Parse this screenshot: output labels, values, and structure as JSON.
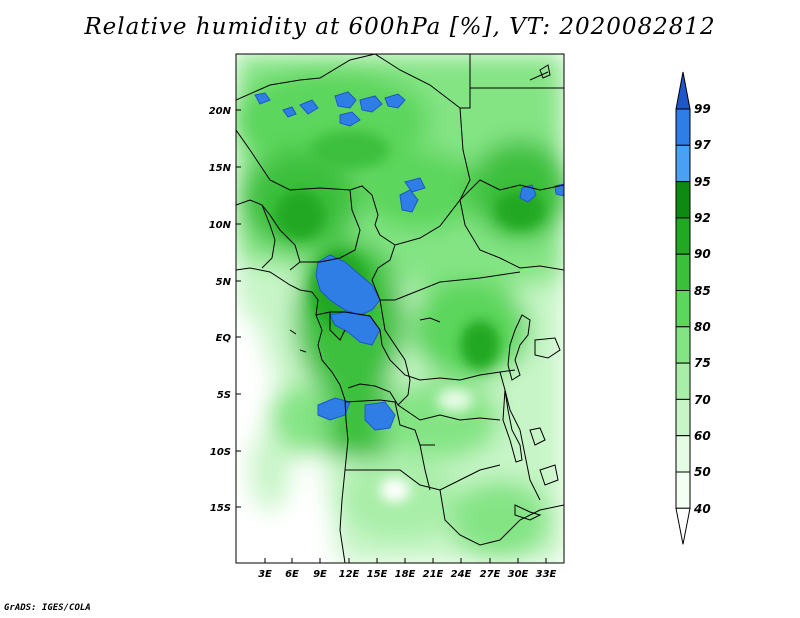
{
  "title": "Relative humidity at 600hPa [%], VT: 2020082812",
  "footer": "GrADS: IGES/COLA",
  "map": {
    "y_ticks": [
      "20N",
      "15N",
      "10N",
      "5N",
      "EQ",
      "5S",
      "10S",
      "15S"
    ],
    "x_ticks": [
      "3E",
      "6E",
      "9E",
      "12E",
      "15E",
      "18E",
      "21E",
      "24E",
      "27E",
      "30E",
      "33E"
    ]
  },
  "colorbar": {
    "labels": [
      "99",
      "97",
      "95",
      "92",
      "90",
      "85",
      "80",
      "75",
      "70",
      "60",
      "50",
      "40"
    ],
    "colors": [
      "#1f56c9",
      "#2f7ee6",
      "#4aa0f2",
      "#0e8a12",
      "#22a822",
      "#3cc03c",
      "#5cd65c",
      "#84e484",
      "#a8eea8",
      "#c8f5c8",
      "#e4fbe4",
      "#f4fff4"
    ]
  }
}
